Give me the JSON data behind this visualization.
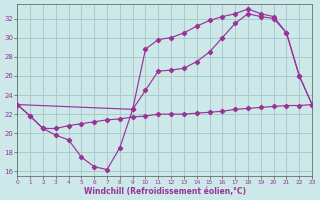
{
  "xlabel": "Windchill (Refroidissement éolien,°C)",
  "bg_color": "#cce8e8",
  "line_color": "#993399",
  "grid_color": "#aacccc",
  "xlim": [
    0,
    23
  ],
  "ylim": [
    15.5,
    33.5
  ],
  "yticks": [
    16,
    18,
    20,
    22,
    24,
    26,
    28,
    30,
    32
  ],
  "xticks": [
    0,
    1,
    2,
    3,
    4,
    5,
    6,
    7,
    8,
    9,
    10,
    11,
    12,
    13,
    14,
    15,
    16,
    17,
    18,
    19,
    20,
    21,
    22,
    23
  ],
  "line_bottom_x": [
    0,
    1,
    2,
    3,
    4,
    5,
    6,
    7,
    8,
    9,
    10,
    11,
    12,
    13,
    14,
    15,
    16,
    17,
    18,
    19,
    20,
    21,
    22,
    23
  ],
  "line_bottom_y": [
    23.0,
    21.8,
    20.5,
    20.5,
    20.8,
    21.0,
    21.2,
    21.4,
    21.5,
    21.7,
    21.8,
    22.0,
    22.0,
    22.0,
    22.1,
    22.2,
    22.3,
    22.5,
    22.6,
    22.7,
    22.8,
    22.9,
    22.9,
    23.0
  ],
  "line_vshape_x": [
    0,
    1,
    2,
    3,
    4,
    5,
    6,
    7,
    8,
    9,
    10,
    11,
    12,
    13,
    14,
    15,
    16,
    17,
    18,
    19,
    20,
    21,
    22,
    23
  ],
  "line_vshape_y": [
    23.0,
    21.8,
    20.5,
    19.8,
    19.3,
    17.5,
    16.5,
    16.2,
    18.5,
    22.5,
    24.5,
    26.5,
    26.6,
    26.8,
    27.5,
    28.5,
    30.0,
    31.5,
    32.5,
    32.2,
    32.0,
    30.5,
    26.0,
    23.0
  ],
  "line_top_x": [
    0,
    9,
    10,
    11,
    12,
    13,
    14,
    15,
    16,
    17,
    18,
    19,
    20,
    21,
    22,
    23
  ],
  "line_top_y": [
    23.0,
    22.5,
    28.8,
    29.8,
    30.0,
    30.5,
    31.2,
    31.8,
    32.2,
    32.5,
    33.0,
    32.5,
    32.2,
    30.5,
    26.0,
    23.0
  ]
}
